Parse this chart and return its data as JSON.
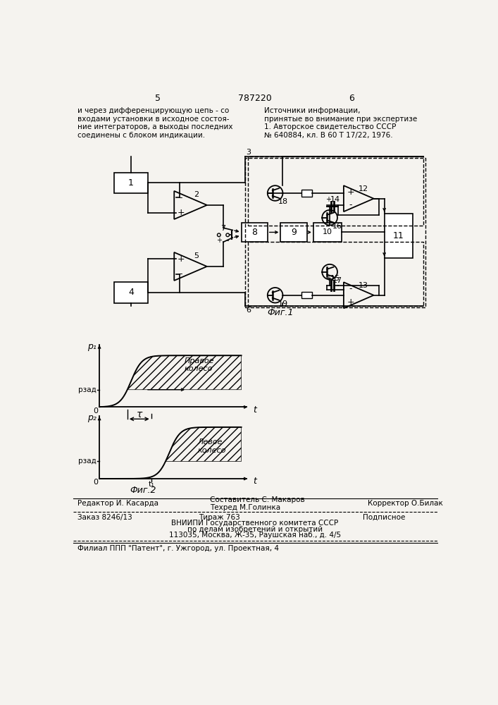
{
  "bg_color": "#f5f3ef",
  "title_number": "787220",
  "page_left": "5",
  "page_right": "6",
  "top_left_text_lines": [
    "и через дифференцирующую цепь - со",
    "входами установки в исходное состоя-",
    "ние интеграторов, а выходы последних",
    "соединены с блоком индикации."
  ],
  "top_right_text_lines": [
    "Источники информации,",
    "принятые во внимание при экспертизе",
    "1. Авторское свидетельство СССР",
    "№ 640884, кл. В 60 Т 17/22, 1976."
  ],
  "fig1_label": "Фиг.1",
  "fig2_label": "Фиг.2",
  "bottom_editor": "Редактор И. Касарда",
  "bottom_composer": "Составитель С. Макаров",
  "bottom_tech": "Техред М.Голинка",
  "bottom_corrector": "Корректор О.Билак",
  "bottom_order": "Заказ 8246/13",
  "bottom_tirazh": "Тираж 763",
  "bottom_podpisnoe": "Подписное",
  "bottom_vniippi": "ВНИИПИ Государственного комитета СССР",
  "bottom_dela": "по делам изобретений и открытий",
  "bottom_address": "113035, Москва, Ж-35, Раушская наб., д. 4/5",
  "bottom_filial": "Филиал ППП \"Патент\", г. Ужгород, ул. Проектная, 4"
}
